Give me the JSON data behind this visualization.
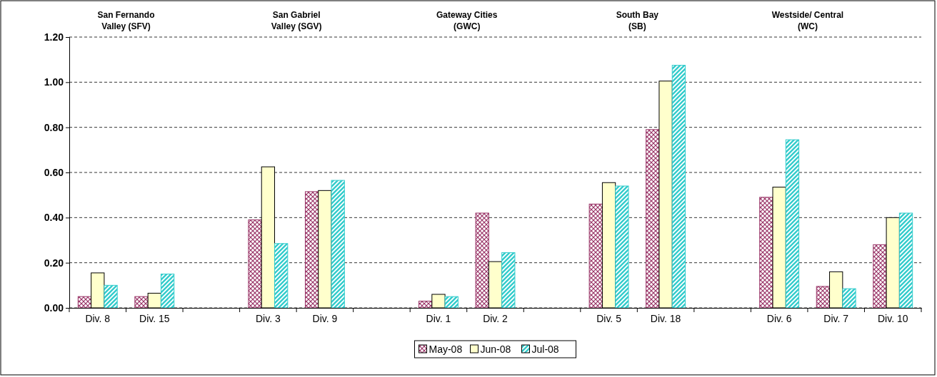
{
  "chart_data": {
    "type": "bar",
    "categories": [
      "Div. 8",
      "Div. 15",
      null,
      "Div. 3",
      "Div. 9",
      null,
      "Div. 1",
      "Div. 2",
      null,
      "Div. 5",
      "Div. 18",
      null,
      "Div. 6",
      "Div. 7",
      "Div. 10"
    ],
    "series": [
      {
        "name": "May-08",
        "color": "#993366",
        "values": [
          0.05,
          0.05,
          null,
          0.39,
          0.515,
          null,
          0.03,
          0.42,
          null,
          0.46,
          0.79,
          null,
          0.49,
          0.095,
          0.28
        ]
      },
      {
        "name": "Jun-08",
        "color": "#ffffcc",
        "values": [
          0.155,
          0.065,
          null,
          0.625,
          0.52,
          null,
          0.06,
          0.205,
          null,
          0.555,
          1.005,
          null,
          0.535,
          0.16,
          0.4
        ]
      },
      {
        "name": "Jul-08",
        "color": "#33cccc",
        "values": [
          0.1,
          0.15,
          null,
          0.285,
          0.565,
          null,
          0.05,
          0.245,
          null,
          0.54,
          1.075,
          null,
          0.745,
          0.085,
          0.42
        ]
      }
    ],
    "ylim": [
      0,
      1.2
    ],
    "yticks": [
      {
        "value": 0,
        "label": "0.00"
      },
      {
        "value": 0.2,
        "label": "0.20"
      },
      {
        "value": 0.4,
        "label": "0.40"
      },
      {
        "value": 0.6,
        "label": "0.60"
      },
      {
        "value": 0.8,
        "label": "0.80"
      },
      {
        "value": 1,
        "label": "1.00"
      },
      {
        "value": 1.2,
        "label": "1.20"
      }
    ],
    "annotations": [
      "San Fernando\nValley (SFV)",
      "San Gabriel\nValley (SGV)",
      "Gateway Cities\n(GWC)",
      "South Bay\n(SB)",
      "Westside/ Central\n(WC)"
    ],
    "grid": "y",
    "legend": "bottom"
  }
}
